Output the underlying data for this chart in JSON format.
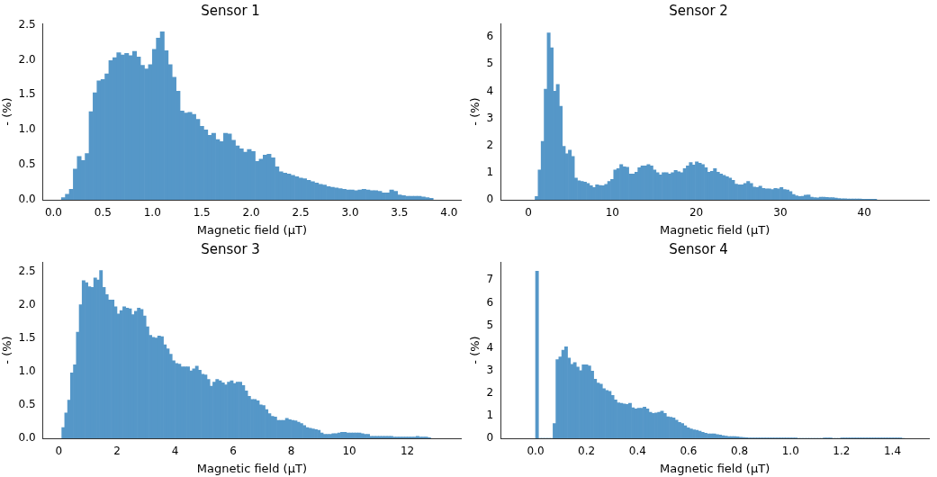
{
  "chart_data": [
    {
      "type": "histogram",
      "title": "Sensor 1",
      "xlabel": "Magnetic field (μT)",
      "ylabel": "- (%)",
      "color": "#5597c8",
      "grid": false,
      "legend": false,
      "bins": [
        0.08,
        0.12,
        0.16,
        0.2,
        0.24,
        0.28,
        0.32,
        0.36,
        0.4,
        0.44,
        0.48,
        0.52,
        0.56,
        0.6,
        0.64,
        0.68,
        0.72,
        0.76,
        0.8,
        0.84,
        0.88,
        0.92,
        0.96,
        1,
        1.04,
        1.08,
        1.12,
        1.16,
        1.2,
        1.24,
        1.28,
        1.32,
        1.36,
        1.4,
        1.44,
        1.48,
        1.52,
        1.56,
        1.6,
        1.64,
        1.68,
        1.72,
        1.76,
        1.8,
        1.84,
        1.88,
        1.92,
        1.96,
        2,
        2.04,
        2.08,
        2.12,
        2.16,
        2.2,
        2.24,
        2.28,
        2.32,
        2.36,
        2.4,
        2.44,
        2.48,
        2.52,
        2.56,
        2.6,
        2.64,
        2.68,
        2.72,
        2.76,
        2.8,
        2.84,
        2.88,
        2.92,
        2.96,
        3,
        3.04,
        3.08,
        3.12,
        3.16,
        3.2,
        3.24,
        3.28,
        3.32,
        3.36,
        3.4,
        3.44,
        3.48,
        3.52,
        3.56,
        3.6,
        3.64,
        3.68,
        3.72,
        3.76,
        3.8,
        3.84
      ],
      "values": [
        0.03,
        0.08,
        0.15,
        0.44,
        0.62,
        0.56,
        0.66,
        1.26,
        1.53,
        1.7,
        1.72,
        1.8,
        1.99,
        2.03,
        2.1,
        2.07,
        2.09,
        2.06,
        2.12,
        2.04,
        1.92,
        1.87,
        1.93,
        2.15,
        2.31,
        2.4,
        2.13,
        1.93,
        1.75,
        1.55,
        1.27,
        1.24,
        1.25,
        1.22,
        1.15,
        1.05,
        1,
        0.92,
        0.95,
        0.86,
        0.83,
        0.95,
        0.94,
        0.85,
        0.77,
        0.73,
        0.68,
        0.72,
        0.69,
        0.55,
        0.58,
        0.64,
        0.65,
        0.6,
        0.47,
        0.4,
        0.38,
        0.37,
        0.35,
        0.33,
        0.31,
        0.3,
        0.28,
        0.26,
        0.24,
        0.22,
        0.21,
        0.19,
        0.18,
        0.17,
        0.16,
        0.15,
        0.14,
        0.14,
        0.13,
        0.14,
        0.15,
        0.14,
        0.13,
        0.13,
        0.12,
        0.1,
        0.1,
        0.14,
        0.12,
        0.07,
        0.06,
        0.05,
        0.05,
        0.05,
        0.05,
        0.04,
        0.03,
        0.02
      ],
      "xlim": [
        -0.107,
        4.12
      ],
      "ylim": [
        0,
        2.52
      ],
      "xticks": [
        {
          "value": 0,
          "label": "0.0"
        },
        {
          "value": 0.5,
          "label": "0.5"
        },
        {
          "value": 1,
          "label": "1.0"
        },
        {
          "value": 1.5,
          "label": "1.5"
        },
        {
          "value": 2,
          "label": "2.0"
        },
        {
          "value": 2.5,
          "label": "2.5"
        },
        {
          "value": 3,
          "label": "3.0"
        },
        {
          "value": 3.5,
          "label": "3.5"
        },
        {
          "value": 4,
          "label": "4.0"
        }
      ],
      "yticks": [
        {
          "value": 0,
          "label": "0.0"
        },
        {
          "value": 0.5,
          "label": "0.5"
        },
        {
          "value": 1,
          "label": "1.0"
        },
        {
          "value": 1.5,
          "label": "1.5"
        },
        {
          "value": 2,
          "label": "2.0"
        },
        {
          "value": 2.5,
          "label": "2.5"
        }
      ]
    },
    {
      "type": "histogram",
      "title": "Sensor 2",
      "xlabel": "Magnetic field (μT)",
      "ylabel": "- (%)",
      "color": "#5597c8",
      "grid": false,
      "legend": false,
      "bins": [
        0.8,
        1.16,
        1.52,
        1.88,
        2.24,
        2.6,
        2.96,
        3.32,
        3.68,
        4.04,
        4.4,
        4.76,
        5.12,
        5.48,
        5.84,
        6.2,
        6.56,
        6.92,
        7.28,
        7.64,
        8,
        8.36,
        8.72,
        9.08,
        9.44,
        9.8,
        10.16,
        10.52,
        10.88,
        11.24,
        11.6,
        11.96,
        12.32,
        12.68,
        13.04,
        13.4,
        13.76,
        14.12,
        14.48,
        14.84,
        15.2,
        15.56,
        15.92,
        16.28,
        16.64,
        17,
        17.36,
        17.72,
        18.08,
        18.44,
        18.8,
        19.16,
        19.52,
        19.88,
        20.24,
        20.6,
        20.96,
        21.32,
        21.68,
        22.04,
        22.4,
        22.76,
        23.12,
        23.48,
        23.84,
        24.2,
        24.56,
        24.92,
        25.28,
        25.64,
        26,
        26.36,
        26.72,
        27.08,
        27.44,
        27.8,
        28.16,
        28.52,
        28.88,
        29.24,
        29.6,
        29.96,
        30.32,
        30.68,
        31.04,
        31.4,
        31.76,
        32.12,
        32.48,
        32.84,
        33.2,
        33.56,
        33.92,
        34.28,
        34.64,
        35,
        35.36,
        35.72,
        36.08,
        36.44,
        36.8,
        37.16,
        37.52,
        37.88,
        38.24,
        38.6,
        38.96,
        39.32,
        39.68,
        40.04,
        40.4,
        40.76,
        41.12,
        41.48
      ],
      "values": [
        0.12,
        1.1,
        2.15,
        4.08,
        6.15,
        5.6,
        4,
        4.25,
        3.45,
        1.97,
        1.7,
        1.83,
        1.6,
        0.8,
        0.7,
        0.68,
        0.65,
        0.6,
        0.52,
        0.45,
        0.55,
        0.53,
        0.52,
        0.57,
        0.68,
        0.75,
        1.1,
        1.15,
        1.3,
        1.22,
        1.2,
        0.95,
        0.95,
        1.02,
        1.18,
        1.25,
        1.25,
        1.3,
        1.25,
        1.1,
        1,
        0.92,
        1,
        1,
        0.95,
        1,
        1.08,
        1.03,
        1,
        1.15,
        1.25,
        1.37,
        1.28,
        1.4,
        1.35,
        1.3,
        1.18,
        1.02,
        1.05,
        1.15,
        1.02,
        0.95,
        0.9,
        0.85,
        0.8,
        0.72,
        0.58,
        0.55,
        0.55,
        0.6,
        0.68,
        0.6,
        0.47,
        0.45,
        0.5,
        0.42,
        0.4,
        0.4,
        0.38,
        0.42,
        0.4,
        0.45,
        0.38,
        0.36,
        0.3,
        0.2,
        0.15,
        0.12,
        0.13,
        0.17,
        0.18,
        0.1,
        0.08,
        0.07,
        0.1,
        0.1,
        0.09,
        0.08,
        0.08,
        0.06,
        0.05,
        0.04,
        0.04,
        0.03,
        0.03,
        0.03,
        0.03,
        0.03,
        0.02,
        0.02,
        0.02,
        0.02,
        0.02
      ],
      "xlim": [
        -3.3,
        47.7
      ],
      "ylim": [
        0,
        6.5
      ],
      "xticks": [
        0,
        10,
        20,
        30,
        40
      ],
      "yticks": [
        0,
        1,
        2,
        3,
        4,
        5,
        6
      ]
    },
    {
      "type": "histogram",
      "title": "Sensor 3",
      "xlabel": "Magnetic field (μT)",
      "ylabel": "- (%)",
      "color": "#5597c8",
      "grid": false,
      "legend": false,
      "bins": [
        0.1,
        0.2,
        0.3,
        0.4,
        0.5,
        0.6,
        0.7,
        0.8,
        0.9,
        1,
        1.1,
        1.2,
        1.3,
        1.4,
        1.5,
        1.6,
        1.7,
        1.8,
        1.9,
        2,
        2.1,
        2.2,
        2.3,
        2.4,
        2.5,
        2.6,
        2.7,
        2.8,
        2.9,
        3,
        3.1,
        3.2,
        3.3,
        3.4,
        3.5,
        3.6,
        3.7,
        3.8,
        3.9,
        4,
        4.1,
        4.2,
        4.3,
        4.4,
        4.5,
        4.6,
        4.7,
        4.8,
        4.9,
        5,
        5.1,
        5.2,
        5.3,
        5.4,
        5.5,
        5.6,
        5.7,
        5.8,
        5.9,
        6,
        6.1,
        6.2,
        6.3,
        6.4,
        6.5,
        6.6,
        6.7,
        6.8,
        6.9,
        7,
        7.1,
        7.2,
        7.3,
        7.4,
        7.5,
        7.6,
        7.7,
        7.8,
        7.9,
        8,
        8.1,
        8.2,
        8.3,
        8.4,
        8.5,
        8.6,
        8.7,
        8.8,
        8.9,
        9,
        9.1,
        9.2,
        9.3,
        9.4,
        9.5,
        9.6,
        9.7,
        9.8,
        9.9,
        10,
        10.1,
        10.2,
        10.3,
        10.4,
        10.5,
        10.6,
        10.7,
        10.8,
        10.9,
        11,
        11.1,
        11.2,
        11.3,
        11.4,
        11.5,
        11.6,
        11.7,
        11.8,
        11.9,
        12,
        12.1,
        12.2,
        12.3,
        12.4,
        12.5,
        12.6,
        12.7,
        12.8
      ],
      "values": [
        0.16,
        0.38,
        0.57,
        0.98,
        1.1,
        1.59,
        2,
        2.36,
        2.33,
        2.27,
        2.26,
        2.4,
        2.37,
        2.51,
        2.26,
        2.15,
        2.07,
        2.07,
        1.97,
        1.86,
        1.91,
        1.97,
        1.95,
        1.94,
        1.85,
        1.9,
        1.95,
        1.93,
        1.83,
        1.67,
        1.54,
        1.51,
        1.5,
        1.53,
        1.52,
        1.4,
        1.34,
        1.26,
        1.16,
        1.12,
        1.11,
        1.07,
        1.07,
        1.07,
        1.01,
        1.04,
        1.08,
        1.02,
        0.96,
        0.95,
        0.88,
        0.78,
        0.84,
        0.88,
        0.86,
        0.83,
        0.8,
        0.84,
        0.86,
        0.82,
        0.84,
        0.84,
        0.79,
        0.71,
        0.63,
        0.58,
        0.58,
        0.56,
        0.5,
        0.49,
        0.43,
        0.37,
        0.33,
        0.32,
        0.27,
        0.27,
        0.27,
        0.3,
        0.28,
        0.27,
        0.26,
        0.24,
        0.22,
        0.19,
        0.16,
        0.15,
        0.14,
        0.13,
        0.12,
        0.08,
        0.06,
        0.06,
        0.06,
        0.07,
        0.07,
        0.08,
        0.09,
        0.09,
        0.08,
        0.08,
        0.08,
        0.08,
        0.08,
        0.07,
        0.06,
        0.06,
        0.03,
        0.03,
        0.03,
        0.03,
        0.03,
        0.03,
        0.03,
        0.03,
        0.02,
        0.02,
        0.02,
        0.02,
        0.02,
        0.02,
        0.02,
        0.02,
        0.03,
        0.02,
        0.02,
        0.02,
        0.01
      ],
      "xlim": [
        -0.55,
        13.84
      ],
      "ylim": [
        0,
        2.64
      ],
      "xticks": [
        0,
        2,
        4,
        6,
        8,
        10,
        12
      ],
      "yticks": [
        {
          "value": 0,
          "label": "0.0"
        },
        {
          "value": 0.5,
          "label": "0.5"
        },
        {
          "value": 1,
          "label": "1.0"
        },
        {
          "value": 1.5,
          "label": "1.5"
        },
        {
          "value": 2,
          "label": "2.0"
        },
        {
          "value": 2.5,
          "label": "2.5"
        }
      ]
    },
    {
      "type": "histogram",
      "title": "Sensor 4",
      "xlabel": "Magnetic field (μT)",
      "ylabel": "- (%)",
      "color": "#5597c8",
      "grid": false,
      "legend": false,
      "bins": [
        0,
        0.0114,
        0.0228,
        0.0342,
        0.0456,
        0.057,
        0.0684,
        0.0798,
        0.0912,
        0.1026,
        0.114,
        0.1254,
        0.1368,
        0.1482,
        0.1596,
        0.171,
        0.1824,
        0.1938,
        0.2052,
        0.2166,
        0.228,
        0.2394,
        0.2508,
        0.2622,
        0.2736,
        0.285,
        0.2964,
        0.3078,
        0.3192,
        0.3306,
        0.342,
        0.3534,
        0.3648,
        0.3762,
        0.3876,
        0.399,
        0.4104,
        0.4218,
        0.4332,
        0.4446,
        0.456,
        0.4674,
        0.4788,
        0.4902,
        0.5016,
        0.513,
        0.5244,
        0.5358,
        0.5472,
        0.5586,
        0.57,
        0.5814,
        0.5928,
        0.6042,
        0.6156,
        0.627,
        0.6384,
        0.6498,
        0.6612,
        0.6726,
        0.684,
        0.6954,
        0.7068,
        0.7182,
        0.7296,
        0.741,
        0.7524,
        0.7638,
        0.7752,
        0.7866,
        0.798,
        0.8094,
        0.8208,
        0.8322,
        0.8436,
        0.855,
        0.8664,
        0.8778,
        0.8892,
        0.9006,
        0.912,
        0.9234,
        0.9348,
        0.9462,
        0.9576,
        0.969,
        0.9804,
        0.9918,
        1.0032,
        1.0146,
        1.026,
        1.0374,
        1.0488,
        1.0602,
        1.0716,
        1.083,
        1.0944,
        1.1058,
        1.1172,
        1.1286,
        1.14,
        1.1514,
        1.1628,
        1.1742,
        1.1856,
        1.197,
        1.2084,
        1.2198,
        1.2312,
        1.2426,
        1.254,
        1.2654,
        1.2768,
        1.2882,
        1.2996,
        1.311,
        1.3224,
        1.3338,
        1.3452,
        1.3566,
        1.368,
        1.3794,
        1.3908,
        1.4022,
        1.4136,
        1.425,
        1.4364,
        1.4478
      ],
      "values": [
        7.4,
        0,
        0,
        0,
        0,
        0,
        0.65,
        3.48,
        3.6,
        3.9,
        4.05,
        3.55,
        3.27,
        3.35,
        3.15,
        3,
        3.25,
        3.25,
        3.2,
        2.98,
        2.62,
        2.45,
        2.4,
        2.2,
        2.12,
        2.08,
        1.9,
        1.7,
        1.57,
        1.55,
        1.52,
        1.5,
        1.55,
        1.35,
        1.3,
        1.33,
        1.33,
        1.38,
        1.3,
        1.15,
        1.1,
        1.12,
        1.15,
        1.2,
        1.1,
        0.95,
        0.93,
        0.9,
        0.8,
        0.7,
        0.65,
        0.55,
        0.47,
        0.42,
        0.38,
        0.36,
        0.32,
        0.27,
        0.23,
        0.2,
        0.2,
        0.2,
        0.17,
        0.15,
        0.12,
        0.1,
        0.08,
        0.08,
        0.08,
        0.07,
        0.05,
        0.04,
        0.03,
        0.02,
        0.02,
        0.02,
        0.02,
        0.02,
        0.02,
        0.02,
        0.02,
        0.02,
        0.02,
        0.02,
        0.02,
        0.02,
        0.02,
        0.02,
        0.02,
        0.02,
        0,
        0,
        0,
        0,
        0,
        0,
        0,
        0,
        0,
        0.02,
        0.02,
        0.02,
        0,
        0,
        0,
        0.02,
        0.02,
        0.02,
        0.02,
        0.02,
        0.02,
        0.02,
        0.02,
        0.02,
        0.02,
        0.02,
        0.02,
        0.02,
        0.02,
        0.02,
        0.02,
        0.02,
        0.02,
        0.02,
        0.02,
        0.02,
        0
      ],
      "xlim": [
        -0.137,
        1.543
      ],
      "ylim": [
        0,
        7.81
      ],
      "xticks": [
        {
          "value": 0,
          "label": "0.0"
        },
        {
          "value": 0.2,
          "label": "0.2"
        },
        {
          "value": 0.4,
          "label": "0.4"
        },
        {
          "value": 0.6,
          "label": "0.6"
        },
        {
          "value": 0.8,
          "label": "0.8"
        },
        {
          "value": 1,
          "label": "1.0"
        },
        {
          "value": 1.2,
          "label": "1.2"
        },
        {
          "value": 1.4,
          "label": "1.4"
        }
      ],
      "yticks": [
        0,
        1,
        2,
        3,
        4,
        5,
        6,
        7
      ]
    }
  ]
}
